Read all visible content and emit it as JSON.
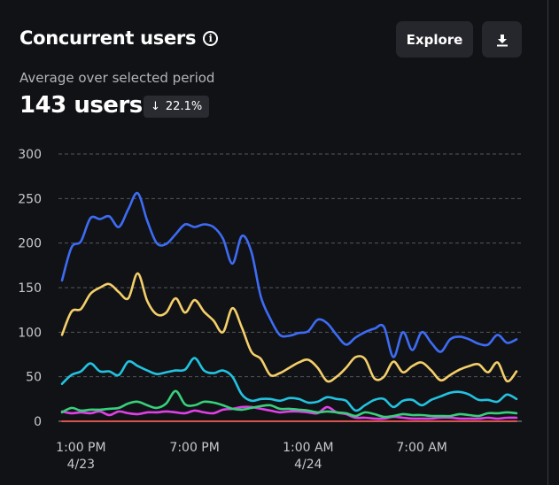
{
  "header": {
    "title": "Concurrent users",
    "info_icon": "info-icon",
    "explore_label": "Explore",
    "download_icon": "download-icon"
  },
  "summary": {
    "subtitle": "Average over selected period",
    "value": "143 users",
    "change_direction": "down",
    "change_icon": "arrow-down-icon",
    "change": "22.1%"
  },
  "chart_data": {
    "type": "line",
    "title": "Concurrent users",
    "xlabel": "",
    "ylabel": "",
    "ylim": [
      0,
      300
    ],
    "yticks": [
      "0",
      "50",
      "100",
      "150",
      "200",
      "250",
      "300"
    ],
    "ytick_values": [
      0,
      50,
      100,
      150,
      200,
      250,
      300
    ],
    "grid": true,
    "xtick_labels": [
      {
        "line1": "1:00 PM",
        "line2": "4/23",
        "hour": 1
      },
      {
        "line1": "7:00 PM",
        "line2": "",
        "hour": 7
      },
      {
        "line1": "1:00 AM",
        "line2": "4/24",
        "hour": 13
      },
      {
        "line1": "7:00 AM",
        "line2": "",
        "hour": 19
      }
    ],
    "x_hours_range": [
      0,
      24
    ],
    "x_note": "hours since 12:00 PM 4/23, sampled every 30 min",
    "series": [
      {
        "name": "blue",
        "color": "#3d6cf5",
        "values": [
          158,
          195,
          202,
          228,
          227,
          230,
          218,
          238,
          256,
          225,
          200,
          199,
          210,
          221,
          218,
          221,
          218,
          205,
          177,
          208,
          190,
          140,
          115,
          97,
          96,
          99,
          101,
          114,
          110,
          97,
          86,
          94,
          100,
          104,
          106,
          72,
          100,
          80,
          100,
          88,
          78,
          92,
          95,
          92,
          87,
          86,
          97,
          88,
          92
        ]
      },
      {
        "name": "yellow",
        "color": "#f4cf6a",
        "values": [
          97,
          123,
          126,
          143,
          150,
          154,
          145,
          138,
          166,
          135,
          120,
          122,
          138,
          122,
          136,
          123,
          113,
          100,
          127,
          105,
          78,
          70,
          52,
          54,
          60,
          66,
          69,
          60,
          45,
          50,
          60,
          72,
          70,
          48,
          50,
          67,
          55,
          62,
          66,
          57,
          46,
          52,
          58,
          62,
          64,
          55,
          66,
          45,
          56
        ]
      },
      {
        "name": "cyan",
        "color": "#22c3e0",
        "values": [
          42,
          52,
          56,
          65,
          56,
          56,
          52,
          67,
          62,
          57,
          53,
          55,
          57,
          58,
          71,
          57,
          54,
          57,
          50,
          30,
          23,
          25,
          25,
          23,
          26,
          25,
          21,
          22,
          27,
          25,
          23,
          12,
          18,
          24,
          25,
          16,
          23,
          24,
          18,
          24,
          28,
          32,
          33,
          30,
          24,
          24,
          22,
          30,
          25
        ]
      },
      {
        "name": "green",
        "color": "#38d07a",
        "values": [
          10,
          15,
          12,
          13,
          13,
          14,
          15,
          20,
          22,
          18,
          15,
          20,
          34,
          19,
          18,
          22,
          21,
          18,
          14,
          13,
          15,
          17,
          18,
          14,
          14,
          13,
          12,
          10,
          11,
          10,
          9,
          6,
          10,
          8,
          5,
          6,
          8,
          7,
          7,
          6,
          6,
          6,
          8,
          7,
          6,
          9,
          9,
          10,
          9
        ]
      },
      {
        "name": "magenta",
        "color": "#e040e8",
        "values": [
          11,
          9,
          10,
          9,
          11,
          7,
          11,
          9,
          8,
          10,
          10,
          11,
          10,
          9,
          12,
          10,
          9,
          13,
          14,
          16,
          16,
          14,
          12,
          10,
          11,
          11,
          10,
          9,
          16,
          10,
          8,
          4,
          4,
          3,
          3,
          5,
          4,
          3,
          3,
          3,
          4,
          4,
          3,
          3,
          3,
          4,
          3,
          4,
          4
        ]
      },
      {
        "name": "red",
        "color": "#d9534f",
        "values": [
          0,
          0,
          0,
          0,
          0,
          0,
          0,
          0,
          0,
          0,
          0,
          0,
          0,
          0,
          0,
          0,
          0,
          0,
          0,
          0,
          0,
          0,
          0,
          0,
          0,
          0,
          0,
          0,
          0,
          0,
          0,
          0,
          0,
          0,
          0,
          0,
          0,
          0,
          0,
          0,
          0,
          0,
          0,
          0,
          0,
          0,
          0,
          0,
          0
        ]
      }
    ]
  }
}
